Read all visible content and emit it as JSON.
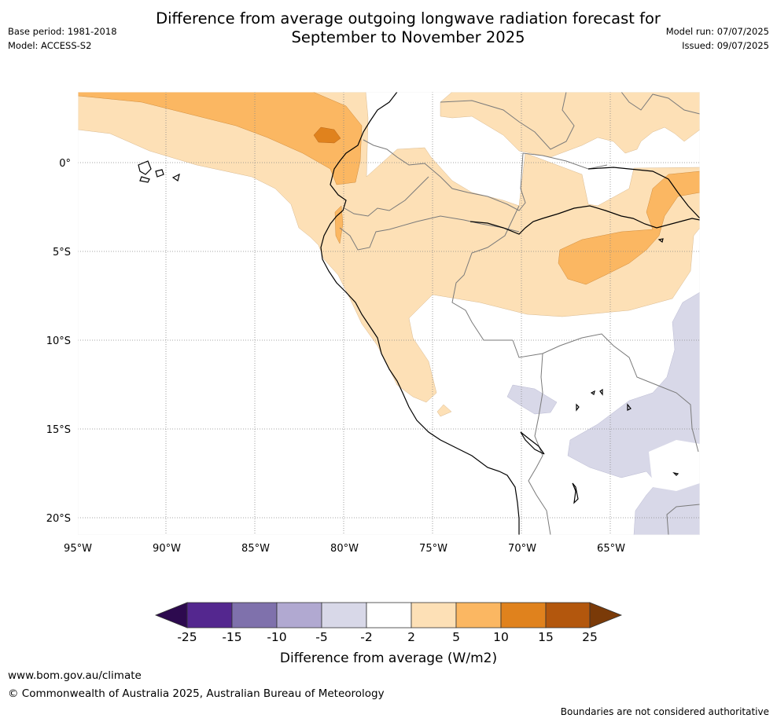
{
  "title_line1": "Difference from average outgoing longwave radiation forecast for",
  "title_line2": "September to November 2025",
  "base_period": "Base period: 1981-2018",
  "model": "Model: ACCESS-S2",
  "model_run": "Model run: 07/07/2025",
  "issued": "Issued: 09/07/2025",
  "lon_labels": [
    "95°W",
    "90°W",
    "85°W",
    "80°W",
    "75°W",
    "70°W",
    "65°W"
  ],
  "lat_labels": [
    "0°",
    "5°S",
    "10°S",
    "15°S",
    "20°S"
  ],
  "colorbar": {
    "label": "Difference from average (W/m2)",
    "ticks": [
      "-25",
      "-15",
      "-10",
      "-5",
      "-2",
      "2",
      "5",
      "10",
      "15",
      "25"
    ],
    "colors": [
      "#2d0a4f",
      "#54278f",
      "#7f71ac",
      "#b1a9d1",
      "#d8d8e8",
      "#ffffff",
      "#fde0b6",
      "#fbb762",
      "#e0821d",
      "#b3570d",
      "#7a3a08"
    ]
  },
  "website": "www.bom.gov.au/climate",
  "copyright": "© Commonwealth of Australia 2025, Australian Bureau of Meteorology",
  "disclaimer": "Boundaries are not considered authoritative"
}
